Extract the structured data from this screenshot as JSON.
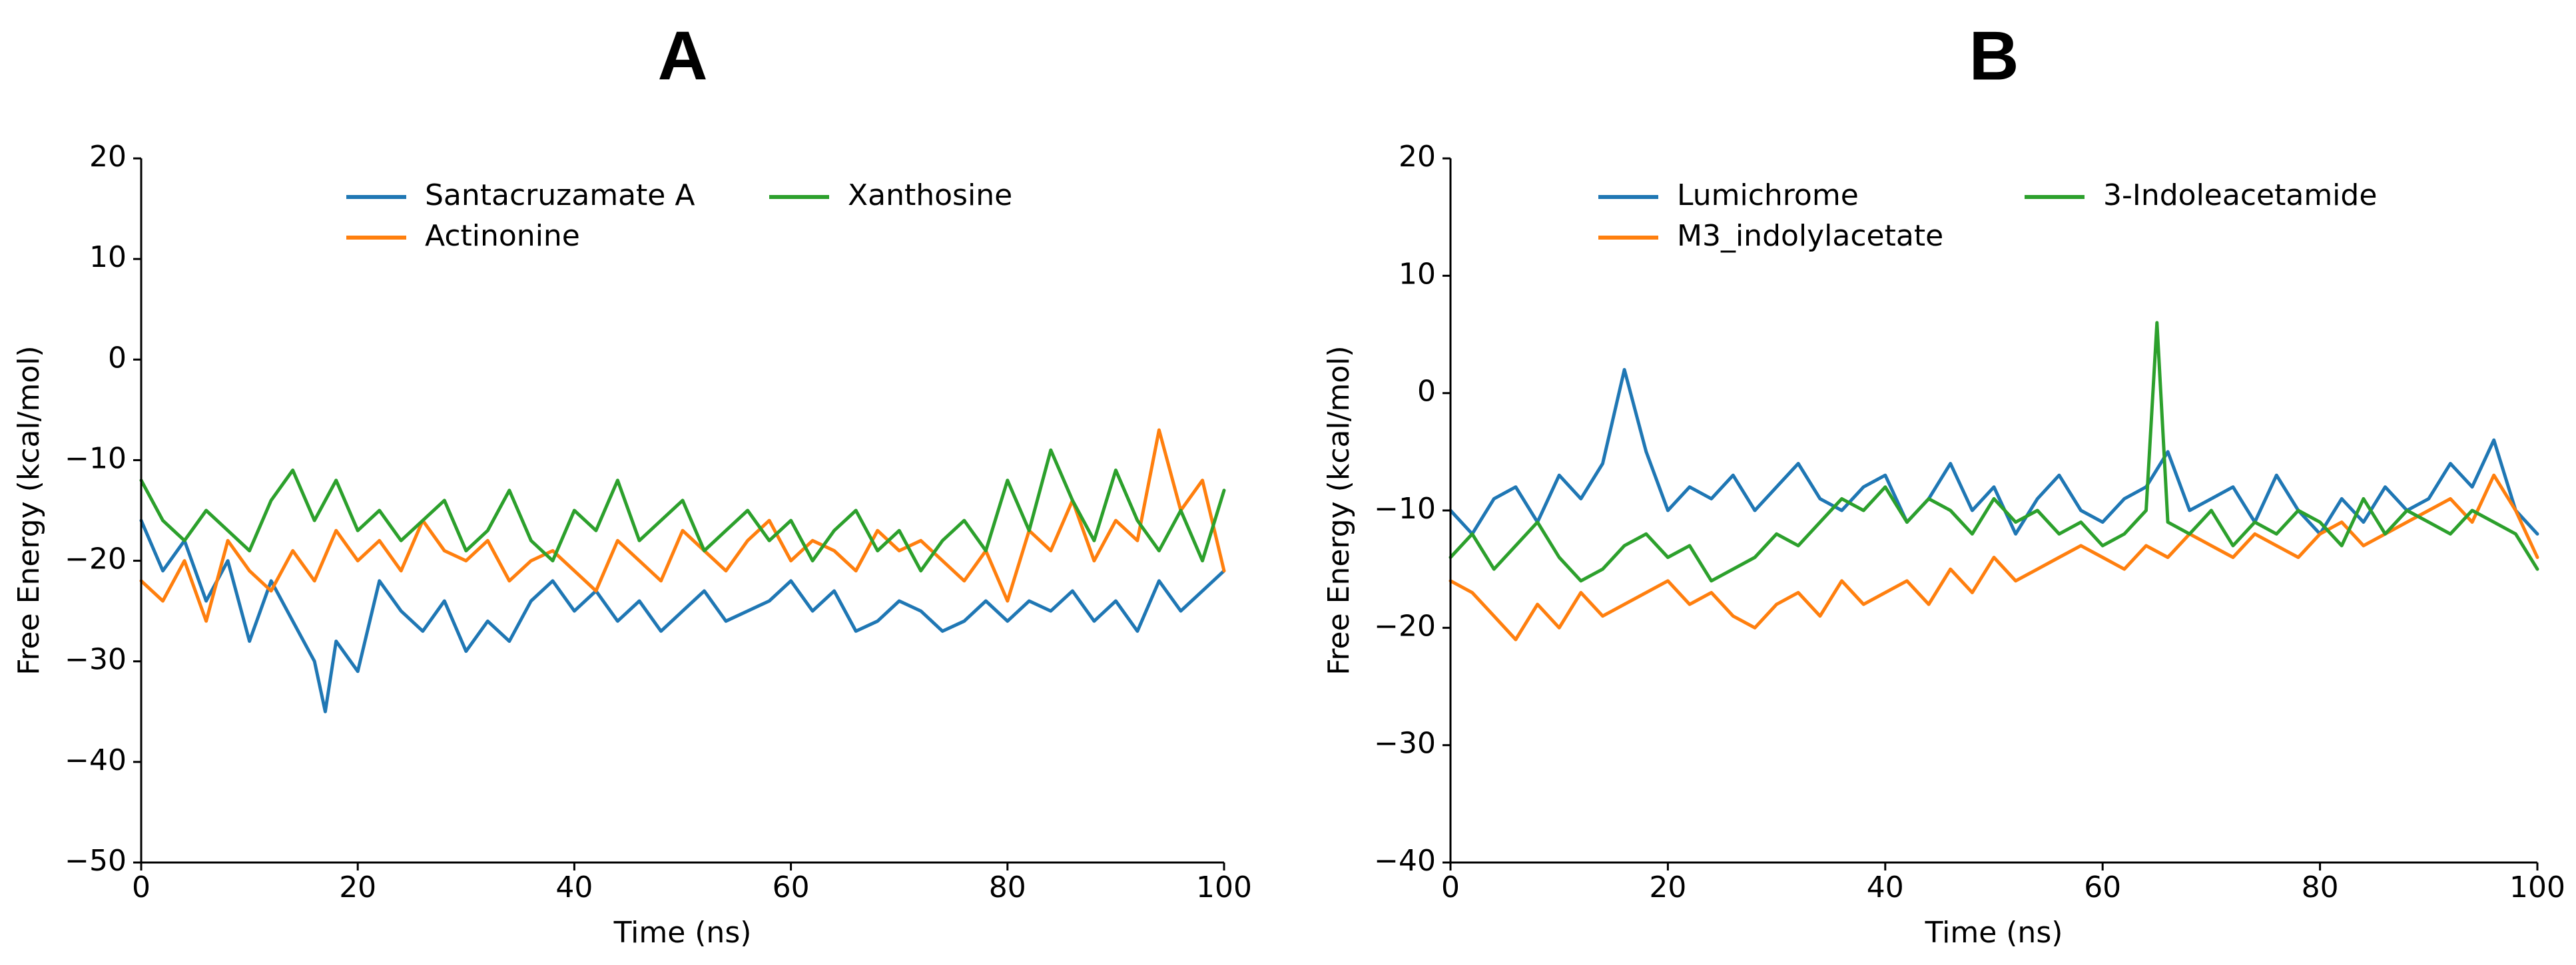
{
  "chart_data": [
    {
      "type": "line",
      "panel_label": "A",
      "title": "",
      "xlabel": "Time (ns)",
      "ylabel": "Free Energy (kcal/mol)",
      "xlim": [
        0,
        100
      ],
      "ylim": [
        -50,
        20
      ],
      "xticks": [
        0,
        20,
        40,
        60,
        80,
        100
      ],
      "yticks": [
        -50,
        -40,
        -30,
        -20,
        -10,
        0,
        10,
        20
      ],
      "xtick_labels": [
        "0",
        "20",
        "40",
        "60",
        "80",
        "100"
      ],
      "ytick_labels": [
        "−50",
        "−40",
        "−30",
        "−20",
        "−10",
        "0",
        "10",
        "20"
      ],
      "legend_position": "top-center",
      "series": [
        {
          "name": "Santacruzamate A",
          "color": "#1f77b4",
          "x": [
            0,
            2,
            4,
            6,
            8,
            10,
            12,
            14,
            16,
            17,
            18,
            20,
            22,
            24,
            26,
            28,
            30,
            32,
            34,
            36,
            38,
            40,
            42,
            44,
            46,
            48,
            50,
            52,
            54,
            56,
            58,
            60,
            62,
            64,
            66,
            68,
            70,
            72,
            74,
            76,
            78,
            80,
            82,
            84,
            86,
            88,
            90,
            92,
            94,
            96,
            98,
            100
          ],
          "values": [
            -16,
            -21,
            -18,
            -24,
            -20,
            -28,
            -22,
            -26,
            -30,
            -35,
            -28,
            -31,
            -22,
            -25,
            -27,
            -24,
            -29,
            -26,
            -28,
            -24,
            -22,
            -25,
            -23,
            -26,
            -24,
            -27,
            -25,
            -23,
            -26,
            -25,
            -24,
            -22,
            -25,
            -23,
            -27,
            -26,
            -24,
            -25,
            -27,
            -26,
            -24,
            -26,
            -24,
            -25,
            -23,
            -26,
            -24,
            -27,
            -22,
            -25,
            -23,
            -21
          ]
        },
        {
          "name": "Actinonine",
          "color": "#ff7f0e",
          "x": [
            0,
            2,
            4,
            6,
            8,
            10,
            12,
            14,
            16,
            18,
            20,
            22,
            24,
            26,
            28,
            30,
            32,
            34,
            36,
            38,
            40,
            42,
            44,
            46,
            48,
            50,
            52,
            54,
            56,
            58,
            60,
            62,
            64,
            66,
            68,
            70,
            72,
            74,
            76,
            78,
            80,
            82,
            84,
            86,
            88,
            90,
            92,
            94,
            96,
            98,
            100
          ],
          "values": [
            -22,
            -24,
            -20,
            -26,
            -18,
            -21,
            -23,
            -19,
            -22,
            -17,
            -20,
            -18,
            -21,
            -16,
            -19,
            -20,
            -18,
            -22,
            -20,
            -19,
            -21,
            -23,
            -18,
            -20,
            -22,
            -17,
            -19,
            -21,
            -18,
            -16,
            -20,
            -18,
            -19,
            -21,
            -17,
            -19,
            -18,
            -20,
            -22,
            -19,
            -24,
            -17,
            -19,
            -14,
            -20,
            -16,
            -18,
            -7,
            -15,
            -12,
            -21
          ]
        },
        {
          "name": "Xanthosine",
          "color": "#2ca02c",
          "x": [
            0,
            2,
            4,
            6,
            8,
            10,
            12,
            14,
            16,
            18,
            20,
            22,
            24,
            26,
            28,
            30,
            32,
            34,
            36,
            38,
            40,
            42,
            44,
            46,
            48,
            50,
            52,
            54,
            56,
            58,
            60,
            62,
            64,
            66,
            68,
            70,
            72,
            74,
            76,
            78,
            80,
            82,
            84,
            86,
            88,
            90,
            92,
            94,
            96,
            98,
            100
          ],
          "values": [
            -12,
            -16,
            -18,
            -15,
            -17,
            -19,
            -14,
            -11,
            -16,
            -12,
            -17,
            -15,
            -18,
            -16,
            -14,
            -19,
            -17,
            -13,
            -18,
            -20,
            -15,
            -17,
            -12,
            -18,
            -16,
            -14,
            -19,
            -17,
            -15,
            -18,
            -16,
            -20,
            -17,
            -15,
            -19,
            -17,
            -21,
            -18,
            -16,
            -19,
            -12,
            -17,
            -9,
            -14,
            -18,
            -11,
            -16,
            -19,
            -15,
            -20,
            -13
          ]
        }
      ]
    },
    {
      "type": "line",
      "panel_label": "B",
      "title": "",
      "xlabel": "Time (ns)",
      "ylabel": "Free Energy (kcal/mol)",
      "xlim": [
        0,
        100
      ],
      "ylim": [
        -40,
        20
      ],
      "xticks": [
        0,
        20,
        40,
        60,
        80,
        100
      ],
      "yticks": [
        -40,
        -30,
        -20,
        -10,
        0,
        10,
        20
      ],
      "xtick_labels": [
        "0",
        "20",
        "40",
        "60",
        "80",
        "100"
      ],
      "ytick_labels": [
        "−40",
        "−30",
        "−20",
        "−10",
        "0",
        "10",
        "20"
      ],
      "legend_position": "top-center",
      "series": [
        {
          "name": "Lumichrome",
          "color": "#1f77b4",
          "x": [
            0,
            2,
            4,
            6,
            8,
            10,
            12,
            14,
            16,
            18,
            20,
            22,
            24,
            26,
            28,
            30,
            32,
            34,
            36,
            38,
            40,
            42,
            44,
            46,
            48,
            50,
            52,
            54,
            56,
            58,
            60,
            62,
            64,
            66,
            68,
            70,
            72,
            74,
            76,
            78,
            80,
            82,
            84,
            86,
            88,
            90,
            92,
            94,
            96,
            98,
            100
          ],
          "values": [
            -10,
            -12,
            -9,
            -8,
            -11,
            -7,
            -9,
            -6,
            2,
            -5,
            -10,
            -8,
            -9,
            -7,
            -10,
            -8,
            -6,
            -9,
            -10,
            -8,
            -7,
            -11,
            -9,
            -6,
            -10,
            -8,
            -12,
            -9,
            -7,
            -10,
            -11,
            -9,
            -8,
            -5,
            -10,
            -9,
            -8,
            -11,
            -7,
            -10,
            -12,
            -9,
            -11,
            -8,
            -10,
            -9,
            -6,
            -8,
            -4,
            -10,
            -12
          ]
        },
        {
          "name": "M3_indolylacetate",
          "color": "#ff7f0e",
          "x": [
            0,
            2,
            4,
            6,
            8,
            10,
            12,
            14,
            16,
            18,
            20,
            22,
            24,
            26,
            28,
            30,
            32,
            34,
            36,
            38,
            40,
            42,
            44,
            46,
            48,
            50,
            52,
            54,
            56,
            58,
            60,
            62,
            64,
            66,
            68,
            70,
            72,
            74,
            76,
            78,
            80,
            82,
            84,
            86,
            88,
            90,
            92,
            94,
            96,
            98,
            100
          ],
          "values": [
            -16,
            -17,
            -19,
            -21,
            -18,
            -20,
            -17,
            -19,
            -18,
            -17,
            -16,
            -18,
            -17,
            -19,
            -20,
            -18,
            -17,
            -19,
            -16,
            -18,
            -17,
            -16,
            -18,
            -15,
            -17,
            -14,
            -16,
            -15,
            -14,
            -13,
            -14,
            -15,
            -13,
            -14,
            -12,
            -13,
            -14,
            -12,
            -13,
            -14,
            -12,
            -11,
            -13,
            -12,
            -11,
            -10,
            -9,
            -11,
            -7,
            -10,
            -14
          ]
        },
        {
          "name": "3-Indoleacetamide",
          "color": "#2ca02c",
          "x": [
            0,
            2,
            4,
            6,
            8,
            10,
            12,
            14,
            16,
            18,
            20,
            22,
            24,
            26,
            28,
            30,
            32,
            34,
            36,
            38,
            40,
            42,
            44,
            46,
            48,
            50,
            52,
            54,
            56,
            58,
            60,
            62,
            64,
            65,
            66,
            68,
            70,
            72,
            74,
            76,
            78,
            80,
            82,
            84,
            86,
            88,
            90,
            92,
            94,
            96,
            98,
            100
          ],
          "values": [
            -14,
            -12,
            -15,
            -13,
            -11,
            -14,
            -16,
            -15,
            -13,
            -12,
            -14,
            -13,
            -16,
            -15,
            -14,
            -12,
            -13,
            -11,
            -9,
            -10,
            -8,
            -11,
            -9,
            -10,
            -12,
            -9,
            -11,
            -10,
            -12,
            -11,
            -13,
            -12,
            -10,
            6,
            -11,
            -12,
            -10,
            -13,
            -11,
            -12,
            -10,
            -11,
            -13,
            -9,
            -12,
            -10,
            -11,
            -12,
            -10,
            -11,
            -12,
            -15
          ]
        }
      ]
    }
  ]
}
